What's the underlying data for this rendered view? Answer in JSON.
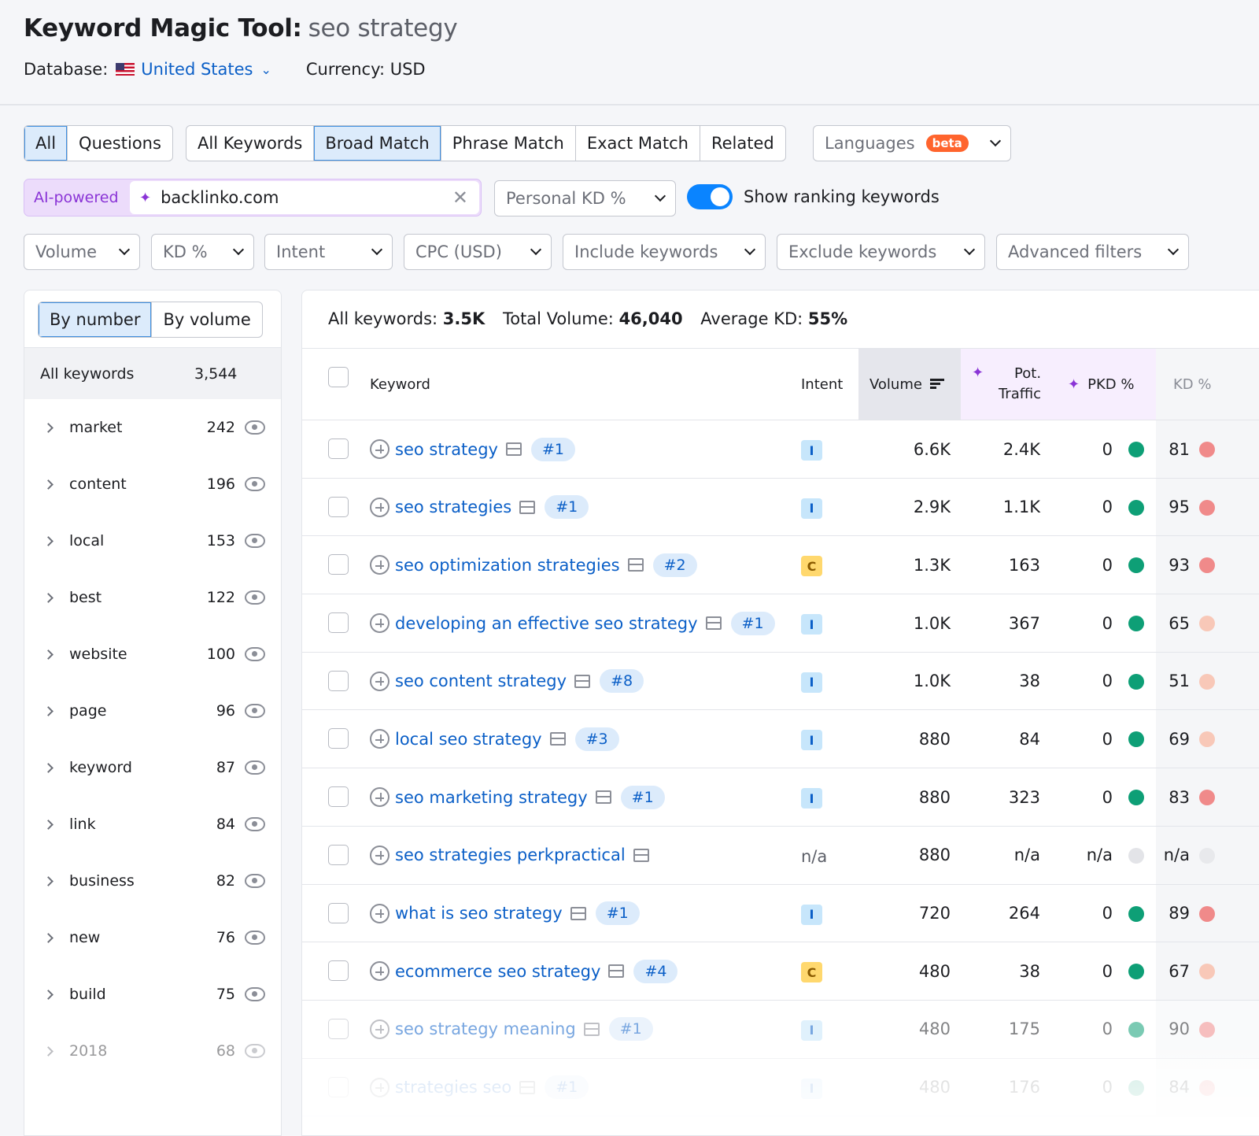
{
  "header": {
    "title": "Keyword Magic Tool:",
    "query": "seo strategy",
    "database_label": "Database:",
    "database_value": "United States",
    "currency": "Currency: USD"
  },
  "question_tabs": [
    "All",
    "Questions"
  ],
  "match_tabs": [
    "All Keywords",
    "Broad Match",
    "Phrase Match",
    "Exact Match",
    "Related"
  ],
  "languages": {
    "label": "Languages",
    "badge": "beta"
  },
  "ai": {
    "label": "AI-powered",
    "value": "backlinko.com"
  },
  "personal_kd": "Personal KD %",
  "toggle_label": "Show ranking keywords",
  "filters": [
    "Volume",
    "KD %",
    "Intent",
    "CPC (USD)",
    "Include keywords",
    "Exclude keywords",
    "Advanced filters"
  ],
  "groups_panel": {
    "tabs": [
      "By number",
      "By volume"
    ],
    "all_label": "All keywords",
    "all_count": "3,544",
    "items": [
      {
        "name": "market",
        "count": "242"
      },
      {
        "name": "content",
        "count": "196"
      },
      {
        "name": "local",
        "count": "153"
      },
      {
        "name": "best",
        "count": "122"
      },
      {
        "name": "website",
        "count": "100"
      },
      {
        "name": "page",
        "count": "96"
      },
      {
        "name": "keyword",
        "count": "87"
      },
      {
        "name": "link",
        "count": "84"
      },
      {
        "name": "business",
        "count": "82"
      },
      {
        "name": "new",
        "count": "76"
      },
      {
        "name": "build",
        "count": "75"
      },
      {
        "name": "2018",
        "count": "68"
      }
    ]
  },
  "summary": {
    "all_label": "All keywords:",
    "all_value": "3.5K",
    "vol_label": "Total Volume:",
    "vol_value": "46,040",
    "kd_label": "Average KD:",
    "kd_value": "55%"
  },
  "columns": {
    "keyword": "Keyword",
    "intent": "Intent",
    "volume": "Volume",
    "pot_1": "Pot.",
    "pot_2": "Traffic",
    "pkd": "PKD %",
    "kd": "KD %"
  },
  "colors": {
    "accent": "#0b5fc7",
    "green": "#0e9f76",
    "kd_red": "#f08a8a",
    "kd_light": "#f8c8b8"
  },
  "rows": [
    {
      "keyword": "seo strategy",
      "pos": "#1",
      "intent": "I",
      "volume": "6.6K",
      "pot": "2.4K",
      "pkd": "0",
      "kd": "81"
    },
    {
      "keyword": "seo strategies",
      "pos": "#1",
      "intent": "I",
      "volume": "2.9K",
      "pot": "1.1K",
      "pkd": "0",
      "kd": "95"
    },
    {
      "keyword": "seo optimization strategies",
      "pos": "#2",
      "intent": "C",
      "volume": "1.3K",
      "pot": "163",
      "pkd": "0",
      "kd": "93"
    },
    {
      "keyword": "developing an effective seo strategy",
      "pos": "#1",
      "intent": "I",
      "volume": "1.0K",
      "pot": "367",
      "pkd": "0",
      "kd": "65"
    },
    {
      "keyword": "seo content strategy",
      "pos": "#8",
      "intent": "I",
      "volume": "1.0K",
      "pot": "38",
      "pkd": "0",
      "kd": "51"
    },
    {
      "keyword": "local seo strategy",
      "pos": "#3",
      "intent": "I",
      "volume": "880",
      "pot": "84",
      "pkd": "0",
      "kd": "69"
    },
    {
      "keyword": "seo marketing strategy",
      "pos": "#1",
      "intent": "I",
      "volume": "880",
      "pot": "323",
      "pkd": "0",
      "kd": "83"
    },
    {
      "keyword": "seo strategies perkpractical",
      "pos": "",
      "intent": "n/a",
      "volume": "880",
      "pot": "n/a",
      "pkd": "n/a",
      "kd": "n/a"
    },
    {
      "keyword": "what is seo strategy",
      "pos": "#1",
      "intent": "I",
      "volume": "720",
      "pot": "264",
      "pkd": "0",
      "kd": "89"
    },
    {
      "keyword": "ecommerce seo strategy",
      "pos": "#4",
      "intent": "C",
      "volume": "480",
      "pot": "38",
      "pkd": "0",
      "kd": "67"
    },
    {
      "keyword": "seo strategy meaning",
      "pos": "#1",
      "intent": "I",
      "volume": "480",
      "pot": "175",
      "pkd": "0",
      "kd": "90"
    },
    {
      "keyword": "strategies seo",
      "pos": "#1",
      "intent": "I",
      "volume": "480",
      "pot": "176",
      "pkd": "0",
      "kd": "84"
    }
  ]
}
